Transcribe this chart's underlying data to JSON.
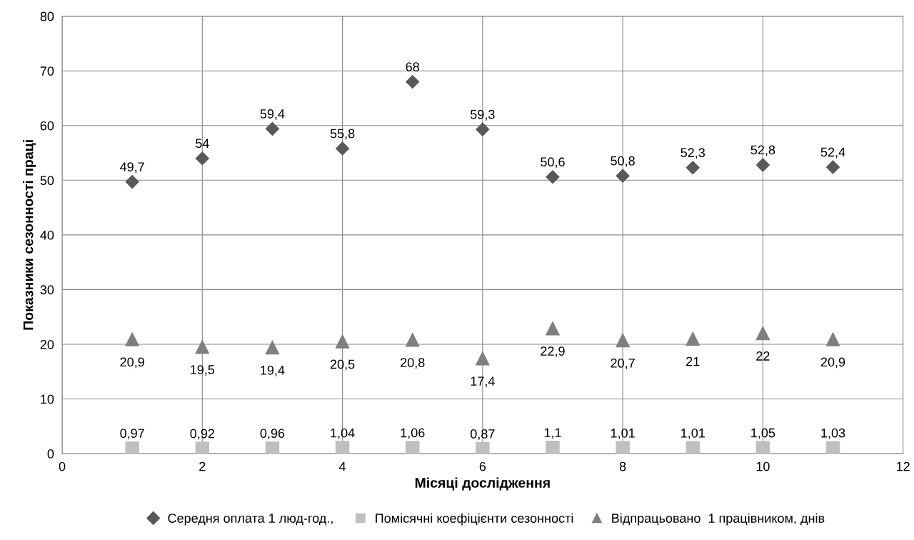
{
  "chart_data": {
    "type": "scatter",
    "xlabel": "Місяці дослідження",
    "ylabel": "Показники сезонності праці",
    "x": [
      1,
      2,
      3,
      4,
      5,
      6,
      7,
      8,
      9,
      10,
      11
    ],
    "series": [
      {
        "name": "Середня оплата 1 люд-год., ",
        "color": "#595959",
        "marker": "diamond",
        "values": [
          49.7,
          54,
          59.4,
          55.8,
          68,
          59.3,
          50.6,
          50.8,
          52.3,
          52.8,
          52.4
        ],
        "value_labels": [
          "49,7",
          "54",
          "59,4",
          "55,8",
          "68",
          "59,3",
          "50,6",
          "50,8",
          "52,3",
          "52,8",
          "52,4"
        ]
      },
      {
        "name": "Помісячні коефіцієнти сезонності",
        "color": "#bfbfbf",
        "marker": "square",
        "values": [
          0.97,
          0.92,
          0.96,
          1.04,
          1.06,
          0.87,
          1.1,
          1.01,
          1.01,
          1.05,
          1.03
        ],
        "value_labels": [
          "0,97",
          "0,92",
          "0,96",
          "1,04",
          "1,06",
          "0,87",
          "1,1",
          "1,01",
          "1,01",
          "1,05",
          "1,03"
        ]
      },
      {
        "name": "Відпрацьовано  1 працівником, днів",
        "color": "#7f7f7f",
        "marker": "triangle",
        "values": [
          20.9,
          19.5,
          19.4,
          20.5,
          20.8,
          17.4,
          22.9,
          20.7,
          21,
          22,
          20.9
        ],
        "value_labels": [
          "20,9",
          "19,5",
          "19,4",
          "20,5",
          "20,8",
          "17,4",
          "22,9",
          "20,7",
          "21",
          "22",
          "20,9"
        ]
      }
    ],
    "xlim": [
      0,
      12
    ],
    "xticks": [
      0,
      2,
      4,
      6,
      8,
      10,
      12
    ],
    "ylim": [
      0,
      80
    ],
    "yticks": [
      0,
      10,
      20,
      30,
      40,
      50,
      60,
      70,
      80
    ],
    "grid": true,
    "legend": "bottom"
  }
}
